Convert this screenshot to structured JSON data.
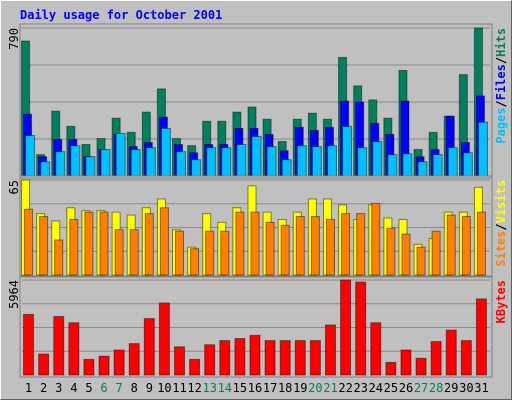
{
  "chart_data": [
    {
      "type": "bar",
      "title": "Daily usage for October 2001",
      "legend_separator": "/",
      "ylim": [
        0,
        790
      ],
      "yticks": [
        790
      ],
      "series": [
        {
          "name": "Hits",
          "color": "#00805c",
          "values": [
            720,
            114,
            346,
            265,
            168,
            200,
            308,
            233,
            341,
            465,
            200,
            162,
            292,
            292,
            341,
            368,
            303,
            184,
            303,
            335,
            303,
            633,
            481,
            406,
            308,
            563,
            141,
            233,
            319,
            541,
            790
          ]
        },
        {
          "name": "Files",
          "color": "#0000ff",
          "values": [
            330,
            103,
            195,
            195,
            103,
            141,
            222,
            157,
            179,
            314,
            168,
            124,
            168,
            168,
            254,
            254,
            222,
            135,
            260,
            243,
            260,
            400,
            395,
            281,
            222,
            400,
            103,
            141,
            319,
            179,
            427
          ]
        },
        {
          "name": "Pages",
          "color": "#00c0ff",
          "values": [
            216,
            76,
            130,
            162,
            103,
            141,
            227,
            141,
            151,
            254,
            130,
            87,
            151,
            151,
            168,
            211,
            157,
            87,
            162,
            157,
            162,
            265,
            151,
            184,
            114,
            119,
            76,
            114,
            151,
            124,
            287
          ]
        }
      ]
    },
    {
      "type": "bar",
      "ylim": [
        0,
        65
      ],
      "yticks": [
        65
      ],
      "series": [
        {
          "name": "Visits",
          "color": "#ffff00",
          "values": [
            65,
            42,
            37,
            46,
            44,
            44,
            43,
            41,
            46,
            52,
            31,
            19,
            42,
            36,
            46,
            61,
            43,
            38,
            43,
            52,
            52,
            48,
            38,
            48,
            39,
            38,
            21,
            25,
            43,
            43,
            60
          ]
        },
        {
          "name": "Sites",
          "color": "#ff8000",
          "values": [
            45,
            40,
            24,
            38,
            43,
            43,
            31,
            31,
            42,
            46,
            30,
            18,
            30,
            30,
            43,
            43,
            36,
            34,
            40,
            40,
            38,
            42,
            42,
            49,
            32,
            28,
            19,
            30,
            41,
            40,
            43
          ]
        }
      ]
    },
    {
      "type": "bar",
      "ylim": [
        0,
        5964
      ],
      "yticks": [
        5964
      ],
      "categories": [
        "1",
        "2",
        "3",
        "4",
        "5",
        "6",
        "7",
        "8",
        "9",
        "10",
        "11",
        "12",
        "13",
        "14",
        "15",
        "16",
        "17",
        "18",
        "19",
        "20",
        "21",
        "22",
        "23",
        "24",
        "25",
        "26",
        "27",
        "28",
        "29",
        "30",
        "31"
      ],
      "category_colors": [
        "#000000",
        "#000000",
        "#000000",
        "#000000",
        "#000000",
        "#00805c",
        "#00805c",
        "#000000",
        "#000000",
        "#000000",
        "#000000",
        "#000000",
        "#00805c",
        "#00805c",
        "#000000",
        "#000000",
        "#000000",
        "#000000",
        "#000000",
        "#00805c",
        "#00805c",
        "#000000",
        "#000000",
        "#000000",
        "#000000",
        "#000000",
        "#00805c",
        "#00805c",
        "#000000",
        "#000000",
        "#000000"
      ],
      "series": [
        {
          "name": "KBytes",
          "color": "#ff0000",
          "values": [
            3800,
            1310,
            3670,
            3280,
            980,
            1180,
            1570,
            1970,
            3540,
            4520,
            1770,
            980,
            1900,
            2160,
            2290,
            2490,
            2160,
            2160,
            2160,
            2160,
            3140,
            5964,
            5830,
            3280,
            790,
            1570,
            1050,
            2100,
            2820,
            2160,
            4780
          ]
        }
      ]
    }
  ]
}
